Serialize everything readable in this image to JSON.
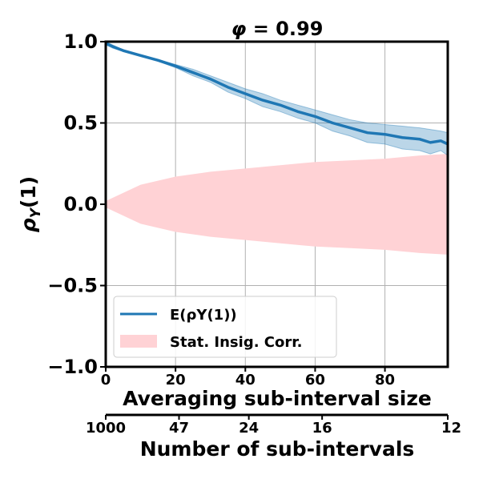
{
  "chart_data": {
    "type": "line",
    "title": "φ = 0.99",
    "xlabel": "Averaging sub-interval size",
    "ylabel": "ρ",
    "ylabel_sub": "Y",
    "ylabel_suffix": "(1)",
    "xlim": [
      0,
      98
    ],
    "ylim": [
      -1.0,
      1.0
    ],
    "x_ticks": [
      0,
      20,
      40,
      60,
      80
    ],
    "x_tick_labels": [
      "0",
      "20",
      "40",
      "60",
      "80"
    ],
    "y_ticks": [
      -1.0,
      -0.5,
      0.0,
      0.5,
      1.0
    ],
    "y_tick_labels": [
      "−1.0",
      "−0.5",
      "0.0",
      "0.5",
      "1.0"
    ],
    "secondary_x": {
      "label": "Number of sub-intervals",
      "ticks": [
        0,
        21,
        41,
        62,
        98
      ],
      "tick_labels": [
        "1000",
        "47",
        "24",
        "16",
        "12"
      ]
    },
    "grid": true,
    "legend_position": "lower-left",
    "series": [
      {
        "name": "E(ρY(1))",
        "color": "#1f77b4",
        "x": [
          0,
          2,
          5,
          10,
          15,
          20,
          25,
          30,
          35,
          40,
          45,
          50,
          55,
          60,
          65,
          70,
          75,
          80,
          85,
          90,
          93,
          96,
          98
        ],
        "y": [
          0.99,
          0.97,
          0.945,
          0.915,
          0.885,
          0.85,
          0.81,
          0.77,
          0.72,
          0.68,
          0.64,
          0.61,
          0.57,
          0.54,
          0.5,
          0.47,
          0.44,
          0.43,
          0.41,
          0.4,
          0.38,
          0.39,
          0.37
        ],
        "band_upper": [
          1.0,
          0.98,
          0.95,
          0.92,
          0.89,
          0.86,
          0.83,
          0.79,
          0.75,
          0.71,
          0.68,
          0.64,
          0.61,
          0.58,
          0.55,
          0.52,
          0.5,
          0.49,
          0.48,
          0.47,
          0.46,
          0.45,
          0.44
        ],
        "band_lower": [
          0.98,
          0.96,
          0.94,
          0.91,
          0.88,
          0.84,
          0.79,
          0.75,
          0.69,
          0.65,
          0.6,
          0.57,
          0.53,
          0.5,
          0.45,
          0.42,
          0.38,
          0.37,
          0.34,
          0.33,
          0.31,
          0.33,
          0.3
        ]
      },
      {
        "name": "Stat. Insig. Corr.",
        "type": "area",
        "color": "#ffd2d5",
        "x": [
          0,
          10,
          20,
          30,
          40,
          50,
          60,
          70,
          80,
          90,
          98
        ],
        "upper": [
          0.02,
          0.12,
          0.17,
          0.2,
          0.22,
          0.24,
          0.26,
          0.27,
          0.28,
          0.3,
          0.31
        ],
        "lower": [
          -0.02,
          -0.12,
          -0.17,
          -0.2,
          -0.22,
          -0.24,
          -0.26,
          -0.27,
          -0.28,
          -0.3,
          -0.31
        ]
      }
    ]
  }
}
